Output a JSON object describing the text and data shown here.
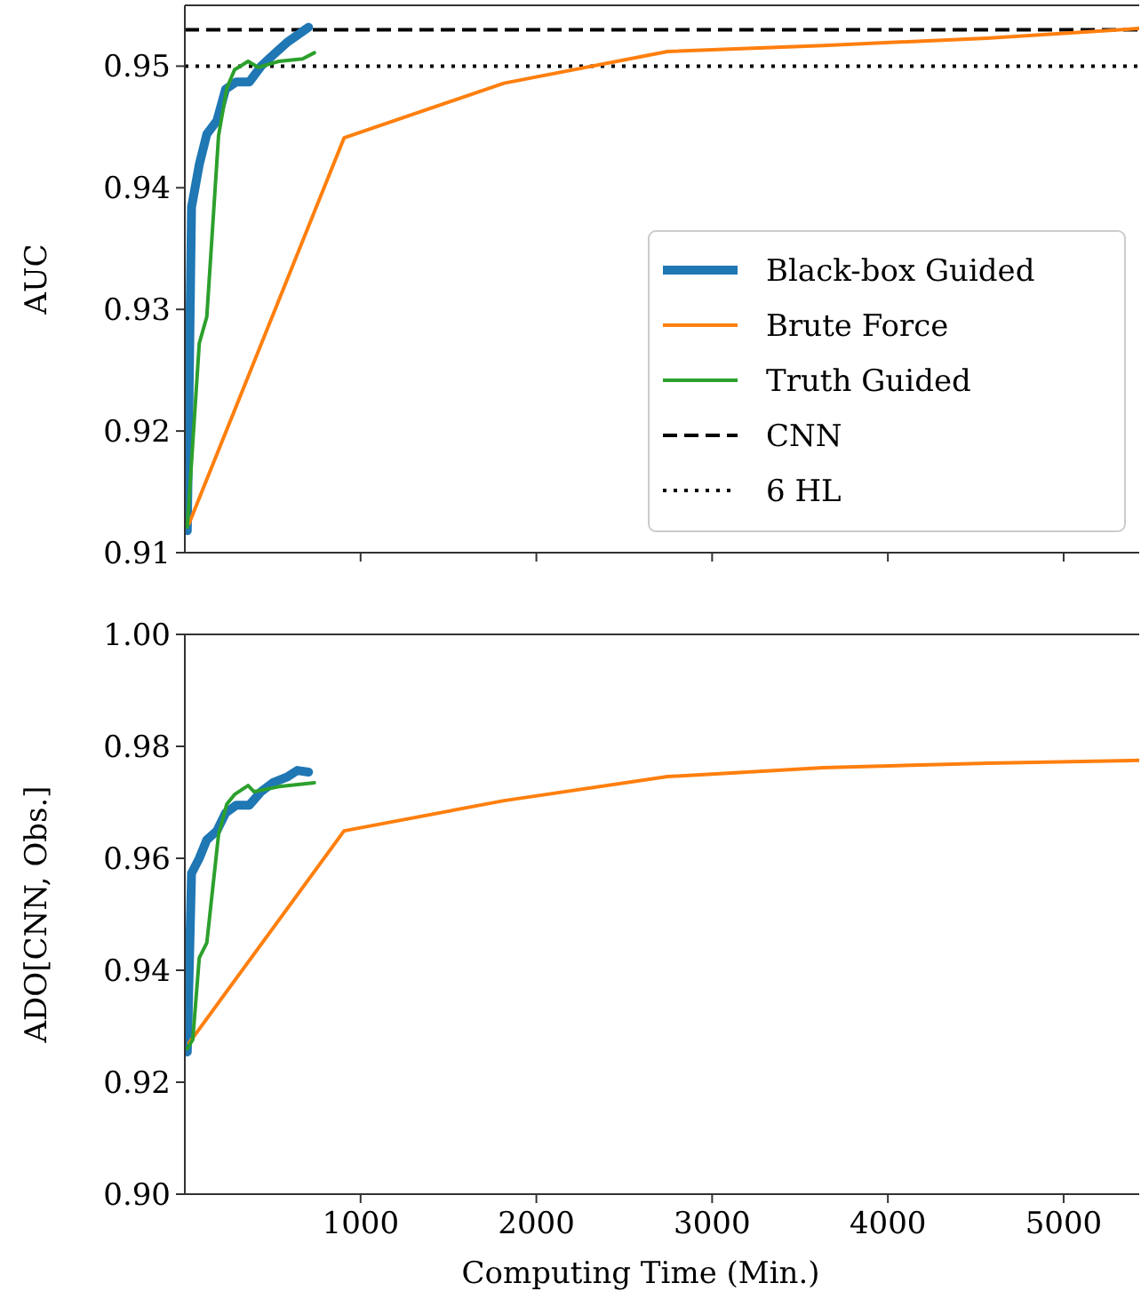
{
  "chart_data": [
    {
      "type": "line",
      "ylabel": "AUC",
      "xlim": [
        0,
        5430
      ],
      "xticks": [
        1000,
        2000,
        3000,
        4000,
        5000
      ],
      "ylim": [
        0.91,
        0.955
      ],
      "yticks": [
        0.91,
        0.92,
        0.93,
        0.94,
        0.95
      ],
      "tick_labels": "y",
      "legend": "bottom right",
      "grid": false,
      "series": [
        {
          "name": "Black-box Guided",
          "color": "#1f77b4",
          "x": [
            14,
            38,
            82,
            125,
            182,
            232,
            293,
            367,
            434,
            501,
            586,
            704
          ],
          "values": [
            0.9118,
            0.9384,
            0.9419,
            0.9444,
            0.9455,
            0.9481,
            0.9487,
            0.9487,
            0.95,
            0.9509,
            0.952,
            0.9532
          ]
        },
        {
          "name": "Brute Force",
          "color": "#ff7f0e",
          "x": [
            24,
            906,
            1816,
            2746,
            3634,
            4564,
            5430
          ],
          "values": [
            0.9124,
            0.9441,
            0.9486,
            0.9512,
            0.9517,
            0.9523,
            0.9531
          ]
        },
        {
          "name": "Truth Guided",
          "color": "#2ca02c",
          "x": [
            14,
            82,
            125,
            192,
            239,
            283,
            360,
            417,
            535,
            670,
            737
          ],
          "values": [
            0.9121,
            0.9272,
            0.9294,
            0.9443,
            0.9482,
            0.9497,
            0.9504,
            0.9499,
            0.9504,
            0.9506,
            0.9511
          ]
        }
      ],
      "ref_lines": [
        {
          "axis": "y",
          "value": 0.953,
          "label": "CNN",
          "color": "#000000",
          "line_style": "dashed"
        },
        {
          "axis": "y",
          "value": 0.95,
          "label": "6 HL",
          "color": "#000000",
          "line_style": "dotted"
        }
      ]
    },
    {
      "type": "line",
      "xlabel": "Computing Time (Min.)",
      "ylabel": "ADO[CNN, Obs.]",
      "xlim": [
        0,
        5430
      ],
      "xticks": [
        1000,
        2000,
        3000,
        4000,
        5000
      ],
      "ylim": [
        0.9,
        1.0
      ],
      "yticks": [
        {
          "value": 0.9,
          "label": "0.90"
        },
        {
          "value": 0.92,
          "label": "0.92"
        },
        {
          "value": 0.94,
          "label": "0.94"
        },
        {
          "value": 0.96,
          "label": "0.96"
        },
        {
          "value": 0.98,
          "label": "0.98"
        },
        {
          "value": 1.0,
          "label": "1.00"
        }
      ],
      "grid": false,
      "series": [
        {
          "color": "#1f77b4",
          "x": [
            14,
            38,
            82,
            125,
            182,
            232,
            293,
            367,
            434,
            501,
            586,
            640,
            704
          ],
          "values": [
            0.9254,
            0.9573,
            0.96,
            0.9633,
            0.9649,
            0.9681,
            0.9695,
            0.9695,
            0.9719,
            0.9735,
            0.9746,
            0.9757,
            0.9754
          ]
        },
        {
          "color": "#ff7f0e",
          "x": [
            24,
            906,
            1816,
            2746,
            3634,
            4564,
            5430
          ],
          "values": [
            0.927,
            0.9649,
            0.9703,
            0.9746,
            0.9762,
            0.977,
            0.9775
          ]
        },
        {
          "color": "#2ca02c",
          "x": [
            14,
            45,
            82,
            125,
            192,
            239,
            283,
            360,
            394,
            535,
            737
          ],
          "values": [
            0.926,
            0.9276,
            0.9422,
            0.9449,
            0.9643,
            0.9697,
            0.9714,
            0.973,
            0.9719,
            0.9728,
            0.9735
          ]
        }
      ]
    }
  ]
}
